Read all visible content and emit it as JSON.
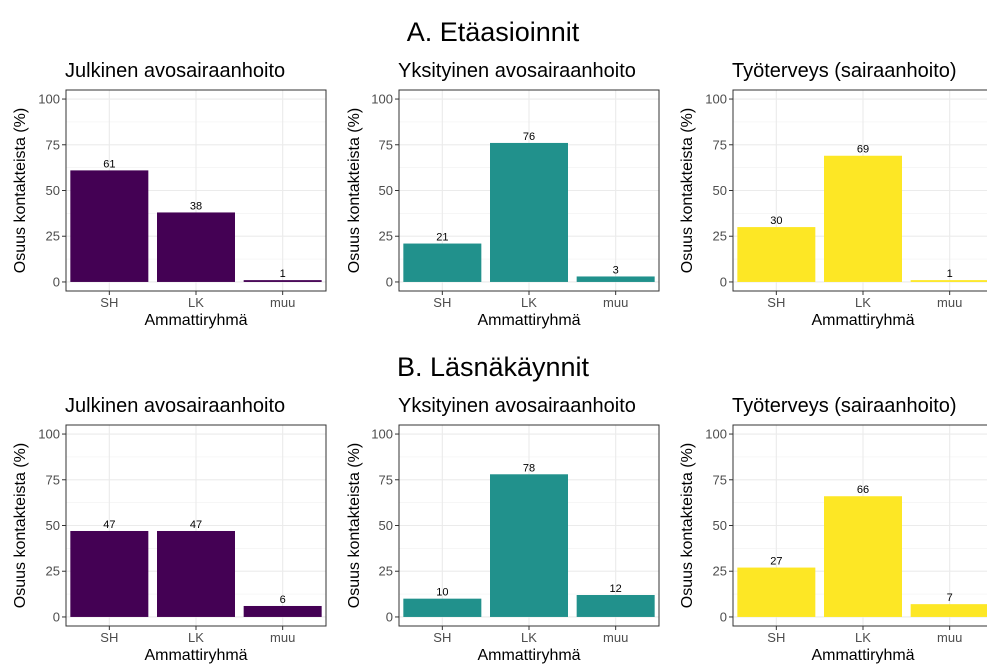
{
  "section_titles": [
    "A. Etäasioinnit",
    "B. Läsnäkäynnit"
  ],
  "chart_data": [
    {
      "type": "bar",
      "section": "A. Etäasioinnit",
      "title": "Julkinen avosairaanhoito",
      "xlabel": "Ammattiryhmä",
      "ylabel": "Osuus kontakteista (%)",
      "categories": [
        "SH",
        "LK",
        "muu"
      ],
      "values": [
        61,
        38,
        1
      ],
      "ylim": [
        0,
        100
      ],
      "yticks": [
        0,
        25,
        50,
        75,
        100
      ],
      "color": "#440154",
      "grid": true
    },
    {
      "type": "bar",
      "section": "A. Etäasioinnit",
      "title": "Yksityinen avosairaanhoito",
      "xlabel": "Ammattiryhmä",
      "ylabel": "Osuus kontakteista (%)",
      "categories": [
        "SH",
        "LK",
        "muu"
      ],
      "values": [
        21,
        76,
        3
      ],
      "ylim": [
        0,
        100
      ],
      "yticks": [
        0,
        25,
        50,
        75,
        100
      ],
      "color": "#21918c",
      "grid": true
    },
    {
      "type": "bar",
      "section": "A. Etäasioinnit",
      "title": "Työterveys (sairaanhoito)",
      "xlabel": "Ammattiryhmä",
      "ylabel": "Osuus kontakteista (%)",
      "categories": [
        "SH",
        "LK",
        "muu"
      ],
      "values": [
        30,
        69,
        1
      ],
      "ylim": [
        0,
        100
      ],
      "yticks": [
        0,
        25,
        50,
        75,
        100
      ],
      "color": "#fde725",
      "grid": true
    },
    {
      "type": "bar",
      "section": "B. Läsnäkäynnit",
      "title": "Julkinen avosairaanhoito",
      "xlabel": "Ammattiryhmä",
      "ylabel": "Osuus kontakteista (%)",
      "categories": [
        "SH",
        "LK",
        "muu"
      ],
      "values": [
        47,
        47,
        6
      ],
      "ylim": [
        0,
        100
      ],
      "yticks": [
        0,
        25,
        50,
        75,
        100
      ],
      "color": "#440154",
      "grid": true
    },
    {
      "type": "bar",
      "section": "B. Läsnäkäynnit",
      "title": "Yksityinen avosairaanhoito",
      "xlabel": "Ammattiryhmä",
      "ylabel": "Osuus kontakteista (%)",
      "categories": [
        "SH",
        "LK",
        "muu"
      ],
      "values": [
        10,
        78,
        12
      ],
      "ylim": [
        0,
        100
      ],
      "yticks": [
        0,
        25,
        50,
        75,
        100
      ],
      "color": "#21918c",
      "grid": true
    },
    {
      "type": "bar",
      "section": "B. Läsnäkäynnit",
      "title": "Työterveys (sairaanhoito)",
      "xlabel": "Ammattiryhmä",
      "ylabel": "Osuus kontakteista (%)",
      "categories": [
        "SH",
        "LK",
        "muu"
      ],
      "values": [
        27,
        66,
        7
      ],
      "ylim": [
        0,
        100
      ],
      "yticks": [
        0,
        25,
        50,
        75,
        100
      ],
      "color": "#fde725",
      "grid": true
    }
  ]
}
